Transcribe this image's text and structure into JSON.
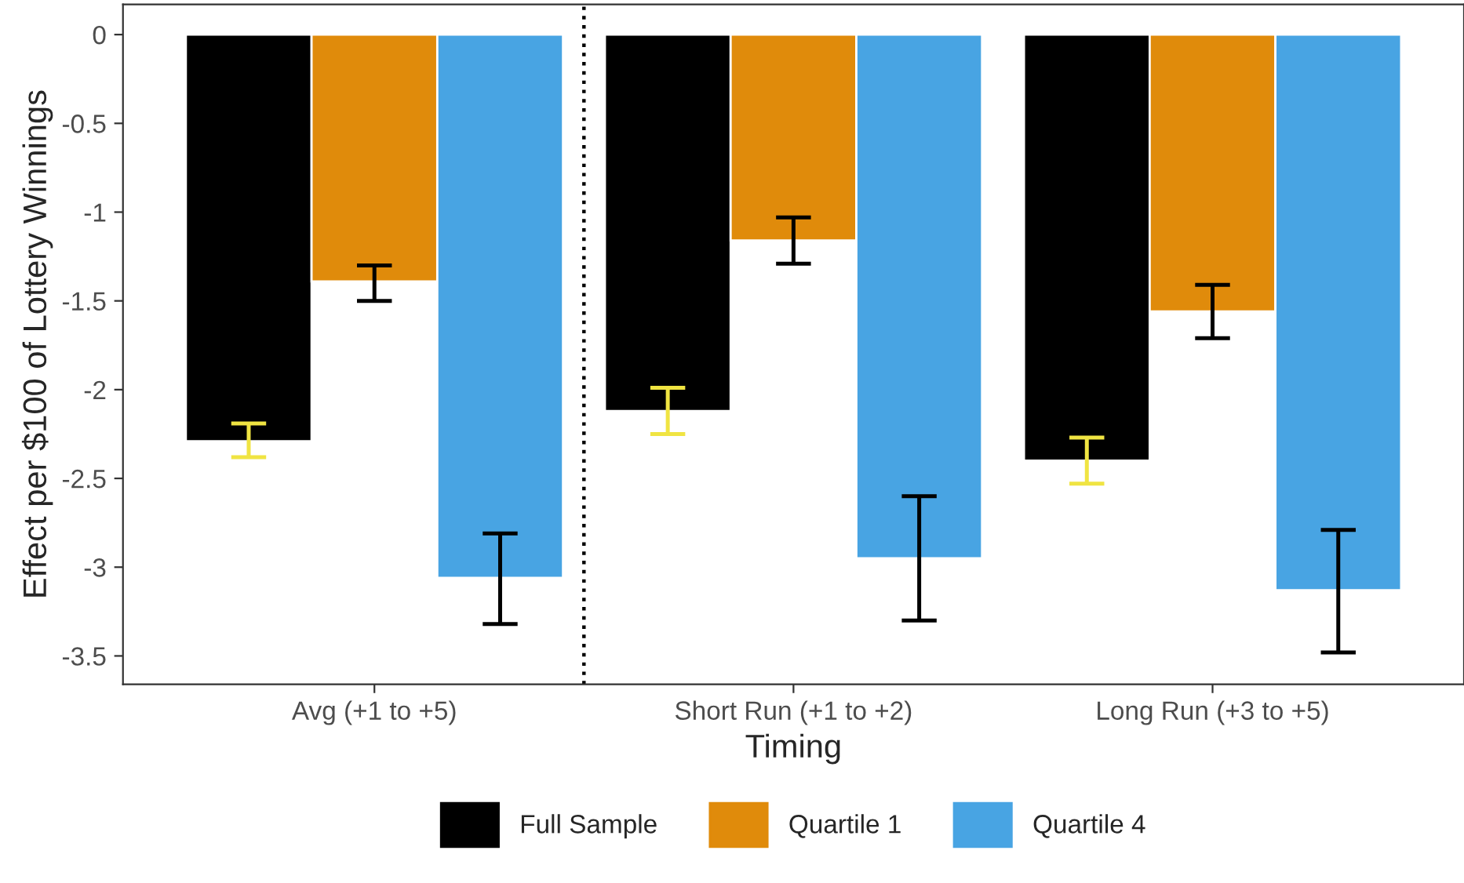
{
  "chart_data": {
    "type": "bar",
    "xlabel": "Timing",
    "ylabel": "Effect per $100 of Lottery Winnings",
    "categories": [
      "Avg (+1 to +5)",
      "Short Run (+1 to +2)",
      "Long Run (+3 to +5)"
    ],
    "series": [
      {
        "name": "Full Sample",
        "color": "#000000",
        "values": [
          -2.29,
          -2.12,
          -2.4
        ],
        "errors": [
          [
            -2.38,
            -2.19
          ],
          [
            -2.25,
            -1.99
          ],
          [
            -2.53,
            -2.27
          ]
        ]
      },
      {
        "name": "Quartile 1",
        "color": "#e08b0b",
        "values": [
          -1.39,
          -1.16,
          -1.56
        ],
        "errors": [
          [
            -1.5,
            -1.3
          ],
          [
            -1.29,
            -1.03
          ],
          [
            -1.71,
            -1.41
          ]
        ]
      },
      {
        "name": "Quartile 4",
        "color": "#48a4e3",
        "values": [
          -3.06,
          -2.95,
          -3.13
        ],
        "errors": [
          [
            -3.32,
            -2.81
          ],
          [
            -3.3,
            -2.6
          ],
          [
            -3.48,
            -2.79
          ]
        ]
      }
    ],
    "ylim": [
      -3.66,
      0.17
    ],
    "yticks": [
      0,
      -0.5,
      -1,
      -1.5,
      -2,
      -2.5,
      -3,
      -3.5
    ],
    "grid": false,
    "legend": "bottom"
  }
}
